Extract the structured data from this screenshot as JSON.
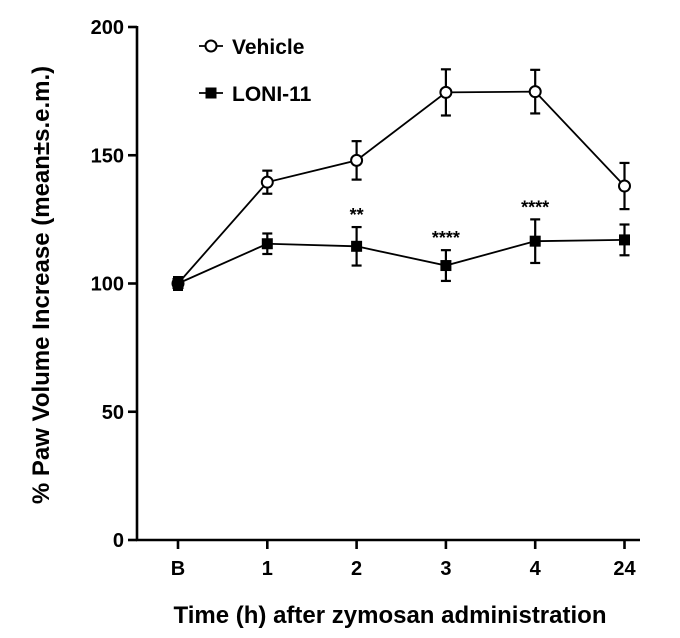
{
  "chart_data": {
    "type": "line",
    "title": "",
    "xlabel": "Time (h) after zymosan administration",
    "ylabel": "% Paw Volume Increase (mean±s.e.m.)",
    "categories": [
      "B",
      "1",
      "2",
      "3",
      "4",
      "24"
    ],
    "ylim": [
      0,
      200
    ],
    "yticks": [
      0,
      50,
      100,
      150,
      200
    ],
    "grid": false,
    "legend_position": "top-left",
    "series": [
      {
        "name": "Vehicle",
        "marker": "open-circle",
        "color": "#000000",
        "values": [
          100,
          139.5,
          148,
          174.5,
          174.8,
          138
        ],
        "errors": [
          2.5,
          4.5,
          7.5,
          9,
          8.5,
          9
        ]
      },
      {
        "name": "LONI-11",
        "marker": "filled-square",
        "color": "#000000",
        "values": [
          100,
          115.5,
          114.5,
          107,
          116.5,
          117
        ],
        "errors": [
          2.5,
          4,
          7.5,
          6,
          8.5,
          6
        ]
      }
    ],
    "annotations": [
      {
        "category": "2",
        "text": "**"
      },
      {
        "category": "3",
        "text": "****"
      },
      {
        "category": "4",
        "text": "****"
      }
    ]
  }
}
